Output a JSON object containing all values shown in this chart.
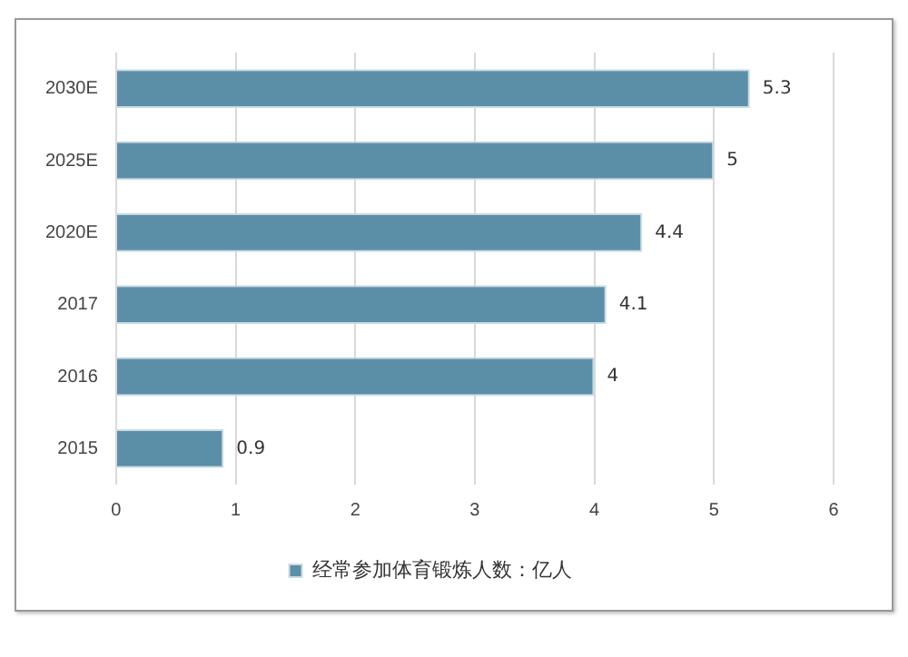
{
  "chart_data": {
    "type": "bar",
    "orientation": "horizontal",
    "categories": [
      "2030E",
      "2025E",
      "2020E",
      "2017",
      "2016",
      "2015"
    ],
    "series": [
      {
        "name": "经常参加体育锻炼人数：亿人",
        "color": "#5b8fa8",
        "values": [
          5.3,
          5,
          4.4,
          4.1,
          4,
          0.9
        ]
      }
    ],
    "xlim": [
      0,
      6
    ],
    "xticks": [
      0,
      1,
      2,
      3,
      4,
      5,
      6
    ],
    "grid": "x",
    "legend": "bottom",
    "data_labels": true
  }
}
